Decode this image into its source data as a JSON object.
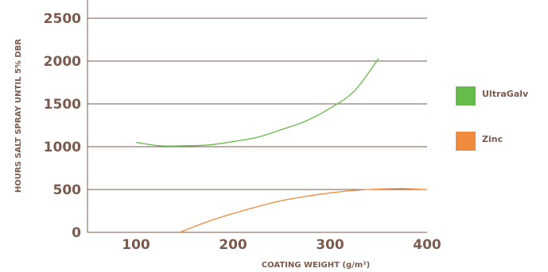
{
  "chart_data": {
    "type": "line",
    "title": "",
    "xlabel": "COATING WEIGHT (g/m²)",
    "ylabel": "HOURS SALT SPRAY UNTIL 5% DBR",
    "xlim": [
      50,
      400
    ],
    "ylim": [
      0,
      2500
    ],
    "xticks": [
      "100",
      "200",
      "300",
      "400"
    ],
    "yticks": [
      "0",
      "500",
      "1000",
      "1500",
      "2000",
      "2500"
    ],
    "grid": "horizontal",
    "legend_position": "right",
    "series": [
      {
        "name": "UltraGalv",
        "color": "#66bb4a",
        "x": [
          100,
          125,
          150,
          175,
          200,
          225,
          250,
          275,
          300,
          325,
          350
        ],
        "y": [
          1050,
          1010,
          1010,
          1020,
          1060,
          1110,
          1200,
          1300,
          1450,
          1650,
          2030
        ]
      },
      {
        "name": "Zinc",
        "color": "#f08a3c",
        "x": [
          145,
          175,
          200,
          225,
          250,
          275,
          300,
          325,
          350,
          375,
          400
        ],
        "y": [
          0,
          130,
          220,
          300,
          370,
          420,
          460,
          490,
          505,
          510,
          500
        ]
      }
    ]
  }
}
